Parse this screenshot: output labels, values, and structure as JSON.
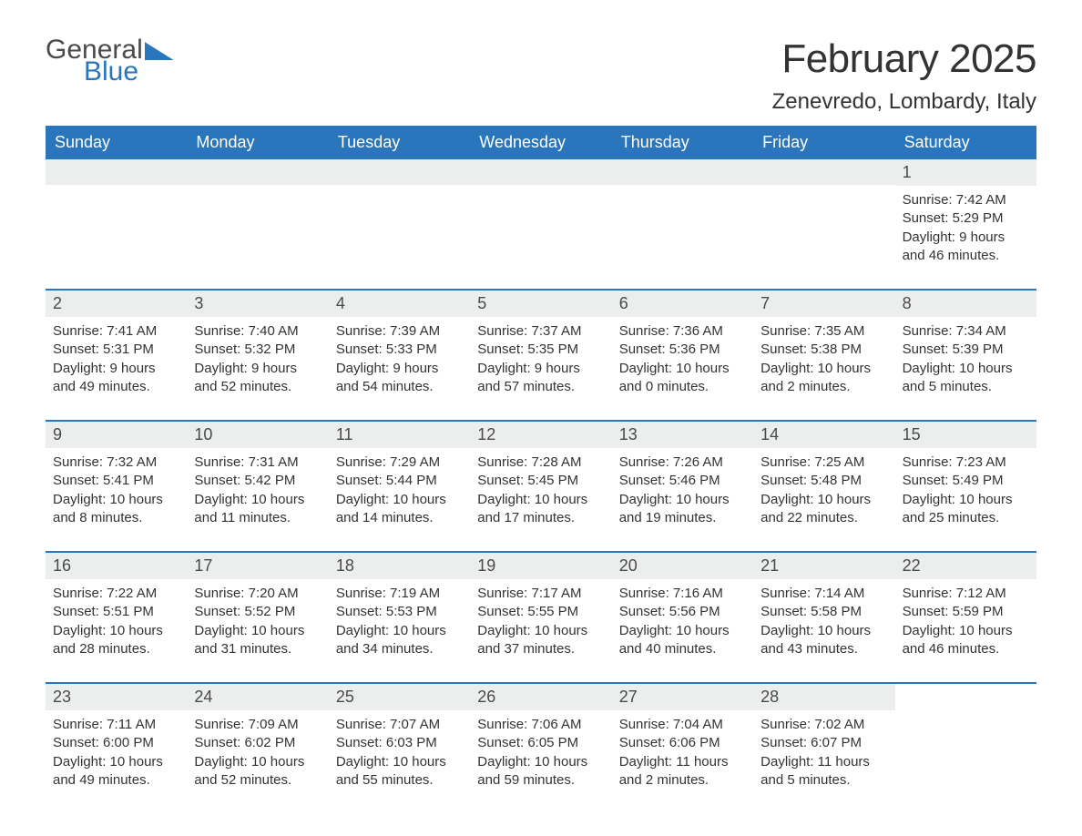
{
  "brand": {
    "word1": "General",
    "word2": "Blue"
  },
  "title": "February 2025",
  "location": "Zenevredo, Lombardy, Italy",
  "colors": {
    "accent": "#2a76bd",
    "strip_bg": "#eceded",
    "text": "#333333",
    "bg": "#ffffff"
  },
  "calendar": {
    "weekdays": [
      "Sunday",
      "Monday",
      "Tuesday",
      "Wednesday",
      "Thursday",
      "Friday",
      "Saturday"
    ],
    "first_weekday_index": 6,
    "days_in_month": 28,
    "days": [
      {
        "n": 1,
        "sunrise": "7:42 AM",
        "sunset": "5:29 PM",
        "daylight": "9 hours and 46 minutes."
      },
      {
        "n": 2,
        "sunrise": "7:41 AM",
        "sunset": "5:31 PM",
        "daylight": "9 hours and 49 minutes."
      },
      {
        "n": 3,
        "sunrise": "7:40 AM",
        "sunset": "5:32 PM",
        "daylight": "9 hours and 52 minutes."
      },
      {
        "n": 4,
        "sunrise": "7:39 AM",
        "sunset": "5:33 PM",
        "daylight": "9 hours and 54 minutes."
      },
      {
        "n": 5,
        "sunrise": "7:37 AM",
        "sunset": "5:35 PM",
        "daylight": "9 hours and 57 minutes."
      },
      {
        "n": 6,
        "sunrise": "7:36 AM",
        "sunset": "5:36 PM",
        "daylight": "10 hours and 0 minutes."
      },
      {
        "n": 7,
        "sunrise": "7:35 AM",
        "sunset": "5:38 PM",
        "daylight": "10 hours and 2 minutes."
      },
      {
        "n": 8,
        "sunrise": "7:34 AM",
        "sunset": "5:39 PM",
        "daylight": "10 hours and 5 minutes."
      },
      {
        "n": 9,
        "sunrise": "7:32 AM",
        "sunset": "5:41 PM",
        "daylight": "10 hours and 8 minutes."
      },
      {
        "n": 10,
        "sunrise": "7:31 AM",
        "sunset": "5:42 PM",
        "daylight": "10 hours and 11 minutes."
      },
      {
        "n": 11,
        "sunrise": "7:29 AM",
        "sunset": "5:44 PM",
        "daylight": "10 hours and 14 minutes."
      },
      {
        "n": 12,
        "sunrise": "7:28 AM",
        "sunset": "5:45 PM",
        "daylight": "10 hours and 17 minutes."
      },
      {
        "n": 13,
        "sunrise": "7:26 AM",
        "sunset": "5:46 PM",
        "daylight": "10 hours and 19 minutes."
      },
      {
        "n": 14,
        "sunrise": "7:25 AM",
        "sunset": "5:48 PM",
        "daylight": "10 hours and 22 minutes."
      },
      {
        "n": 15,
        "sunrise": "7:23 AM",
        "sunset": "5:49 PM",
        "daylight": "10 hours and 25 minutes."
      },
      {
        "n": 16,
        "sunrise": "7:22 AM",
        "sunset": "5:51 PM",
        "daylight": "10 hours and 28 minutes."
      },
      {
        "n": 17,
        "sunrise": "7:20 AM",
        "sunset": "5:52 PM",
        "daylight": "10 hours and 31 minutes."
      },
      {
        "n": 18,
        "sunrise": "7:19 AM",
        "sunset": "5:53 PM",
        "daylight": "10 hours and 34 minutes."
      },
      {
        "n": 19,
        "sunrise": "7:17 AM",
        "sunset": "5:55 PM",
        "daylight": "10 hours and 37 minutes."
      },
      {
        "n": 20,
        "sunrise": "7:16 AM",
        "sunset": "5:56 PM",
        "daylight": "10 hours and 40 minutes."
      },
      {
        "n": 21,
        "sunrise": "7:14 AM",
        "sunset": "5:58 PM",
        "daylight": "10 hours and 43 minutes."
      },
      {
        "n": 22,
        "sunrise": "7:12 AM",
        "sunset": "5:59 PM",
        "daylight": "10 hours and 46 minutes."
      },
      {
        "n": 23,
        "sunrise": "7:11 AM",
        "sunset": "6:00 PM",
        "daylight": "10 hours and 49 minutes."
      },
      {
        "n": 24,
        "sunrise": "7:09 AM",
        "sunset": "6:02 PM",
        "daylight": "10 hours and 52 minutes."
      },
      {
        "n": 25,
        "sunrise": "7:07 AM",
        "sunset": "6:03 PM",
        "daylight": "10 hours and 55 minutes."
      },
      {
        "n": 26,
        "sunrise": "7:06 AM",
        "sunset": "6:05 PM",
        "daylight": "10 hours and 59 minutes."
      },
      {
        "n": 27,
        "sunrise": "7:04 AM",
        "sunset": "6:06 PM",
        "daylight": "11 hours and 2 minutes."
      },
      {
        "n": 28,
        "sunrise": "7:02 AM",
        "sunset": "6:07 PM",
        "daylight": "11 hours and 5 minutes."
      }
    ],
    "labels": {
      "sunrise_prefix": "Sunrise: ",
      "sunset_prefix": "Sunset: ",
      "daylight_prefix": "Daylight: "
    }
  }
}
